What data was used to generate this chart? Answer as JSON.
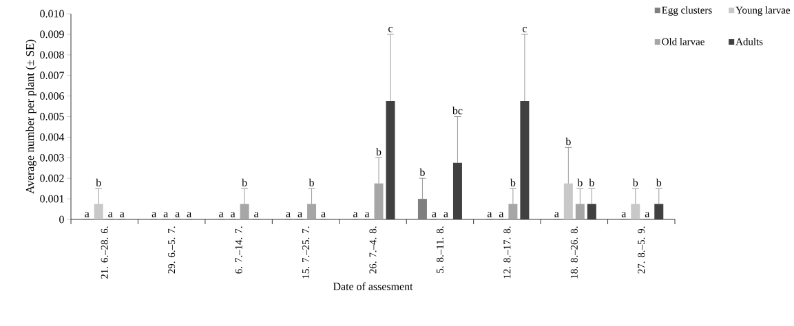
{
  "chart_data": {
    "type": "bar",
    "xlabel": "Date of assesment",
    "ylabel": "Average number per plant (± SE)",
    "categories": [
      "21. 6.–28. 6.",
      "29. 6.–5. 7.",
      "6. 7.–14. 7.",
      "15. 7.–25. 7.",
      "26. 7.–4. 8.",
      "5. 8.–11. 8.",
      "12. 8.–17. 8.",
      "18. 8.–26. 8.",
      "27. 8.–5. 9."
    ],
    "series": [
      {
        "name": "Egg clusters",
        "color": "#7f7f7f",
        "values": [
          0,
          0,
          0,
          0,
          0,
          0.001,
          0,
          0,
          0
        ],
        "errors": [
          null,
          null,
          null,
          null,
          null,
          [
            0.001,
            0.002
          ],
          null,
          null,
          null
        ]
      },
      {
        "name": "Young larvae",
        "color": "#c8c8c8",
        "values": [
          0.00075,
          0,
          0,
          0,
          0,
          0,
          0,
          0.00175,
          0.00075
        ],
        "errors": [
          [
            0.00075,
            0.0015
          ],
          null,
          null,
          null,
          null,
          null,
          null,
          [
            0.00175,
            0.0035
          ],
          [
            0.00075,
            0.0015
          ]
        ]
      },
      {
        "name": "Old larvae",
        "color": "#a6a6a6",
        "values": [
          0,
          0,
          0.00075,
          0.00075,
          0.00175,
          0,
          0.00075,
          0.00075,
          0
        ],
        "errors": [
          null,
          null,
          [
            0.00075,
            0.0015
          ],
          [
            0.00075,
            0.0015
          ],
          [
            0.00175,
            0.003
          ],
          null,
          [
            0.00075,
            0.0015
          ],
          [
            0.00075,
            0.0015
          ],
          null
        ]
      },
      {
        "name": "Adults",
        "color": "#404040",
        "values": [
          0,
          0,
          0,
          0,
          0.00575,
          0.00275,
          0.00575,
          0.00075,
          0.00075
        ],
        "errors": [
          null,
          null,
          null,
          null,
          [
            0.00575,
            0.009
          ],
          [
            0.00275,
            0.005
          ],
          [
            0.00575,
            0.009
          ],
          [
            0.00075,
            0.0015
          ],
          [
            0.00075,
            0.0015
          ]
        ]
      }
    ],
    "annotations": [
      "a",
      "b",
      "a",
      "a",
      "a",
      "a",
      "a",
      "a",
      "a",
      "a",
      "b",
      "a",
      "a",
      "a",
      "b",
      "a",
      "a",
      "a",
      "b",
      "c",
      "b",
      "a",
      "a",
      "bc",
      "a",
      "a",
      "b",
      "c",
      "a",
      "b",
      "b",
      "b",
      "a",
      "b",
      "a",
      "b"
    ],
    "ylim": [
      0,
      0.01
    ],
    "yticks": [
      0,
      0.001,
      0.002,
      0.003,
      0.004,
      0.005,
      0.006,
      0.007,
      0.008,
      0.009,
      {
        "value": 0.01,
        "label": "0.010"
      }
    ],
    "grid": false,
    "legend": "top right"
  }
}
